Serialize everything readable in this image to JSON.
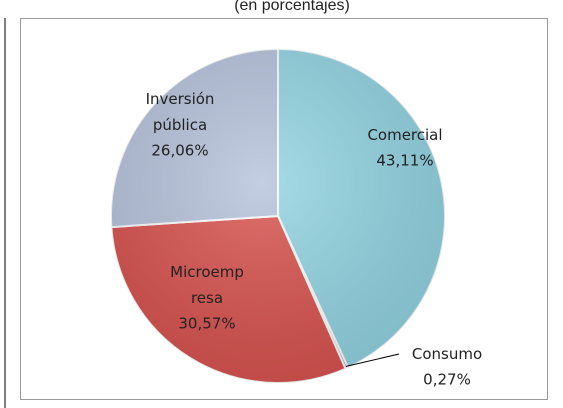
{
  "chart_data": {
    "type": "pie",
    "title": "(en porcentajes)",
    "categories": [
      "Comercial",
      "Consumo",
      "Microempresa",
      "Inversión pública"
    ],
    "values": [
      43.11,
      0.27,
      30.57,
      26.06
    ],
    "value_labels": [
      "43,11%",
      "0,27%",
      "30,57%",
      "26,06%"
    ],
    "colors": [
      "#93d5e3",
      "#b8a5cc",
      "#d9534f",
      "#b7c3dc"
    ]
  }
}
